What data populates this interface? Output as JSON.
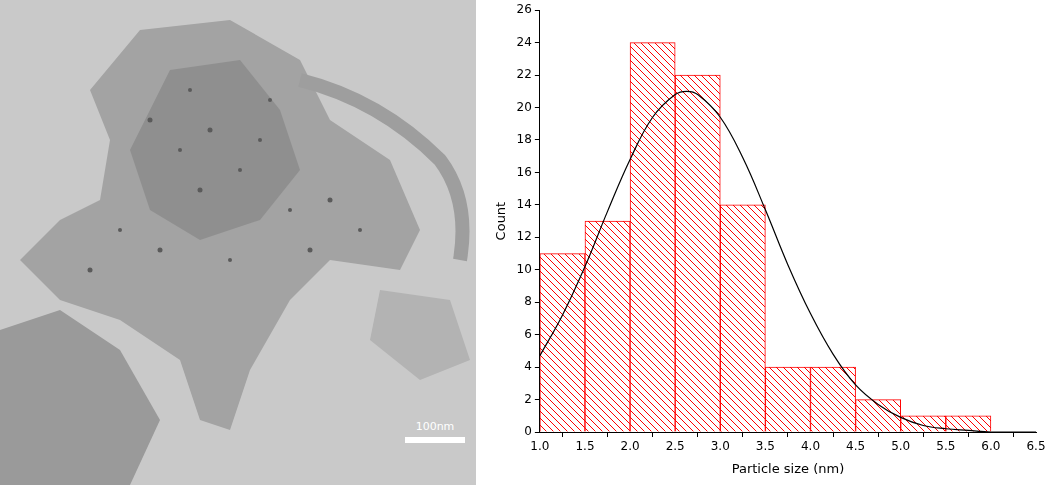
{
  "image": {
    "scale_bar": "100nm"
  },
  "chart_data": {
    "type": "histogram",
    "xlabel": "Particle size (nm)",
    "ylabel": "Count",
    "bins": [
      1.0,
      1.5,
      2.0,
      2.5,
      3.0,
      3.5,
      4.0,
      4.5,
      5.0,
      5.5,
      6.0
    ],
    "values": [
      11,
      13,
      24,
      22,
      14,
      4,
      4,
      2,
      1,
      1
    ],
    "color": "#ff0000",
    "fit": {
      "type": "line",
      "color": "#000000",
      "x": [
        1.0,
        1.25,
        1.5,
        1.75,
        2.0,
        2.25,
        2.5,
        2.63,
        2.75,
        3.0,
        3.25,
        3.5,
        3.75,
        4.0,
        4.25,
        4.5,
        4.75,
        5.0,
        5.25,
        5.5,
        5.75,
        6.0,
        6.5
      ],
      "values": [
        4.7,
        7.2,
        10.2,
        13.6,
        16.8,
        19.4,
        20.8,
        21.0,
        20.8,
        19.4,
        16.9,
        13.7,
        10.3,
        7.3,
        4.8,
        2.9,
        1.7,
        0.9,
        0.4,
        0.2,
        0.1,
        0.0,
        0.0
      ]
    },
    "xlim": [
      1.0,
      6.5
    ],
    "xticks": [
      {
        "value": 1,
        "label": "1.0"
      },
      {
        "value": 1.5,
        "label": "1.5"
      },
      {
        "value": 2,
        "label": "2.0"
      },
      {
        "value": 2.5,
        "label": "2.5"
      },
      {
        "value": 3,
        "label": "3.0"
      },
      {
        "value": 3.5,
        "label": "3.5"
      },
      {
        "value": 4,
        "label": "4.0"
      },
      {
        "value": 4.5,
        "label": "4.5"
      },
      {
        "value": 5,
        "label": "5.0"
      },
      {
        "value": 5.5,
        "label": "5.5"
      },
      {
        "value": 6,
        "label": "6.0"
      },
      {
        "value": 6.5,
        "label": "6.5"
      }
    ],
    "ylim": [
      0,
      26
    ],
    "yticks": [
      0,
      2,
      4,
      6,
      8,
      10,
      12,
      14,
      16,
      18,
      20,
      22,
      24,
      26
    ],
    "grid": false
  }
}
